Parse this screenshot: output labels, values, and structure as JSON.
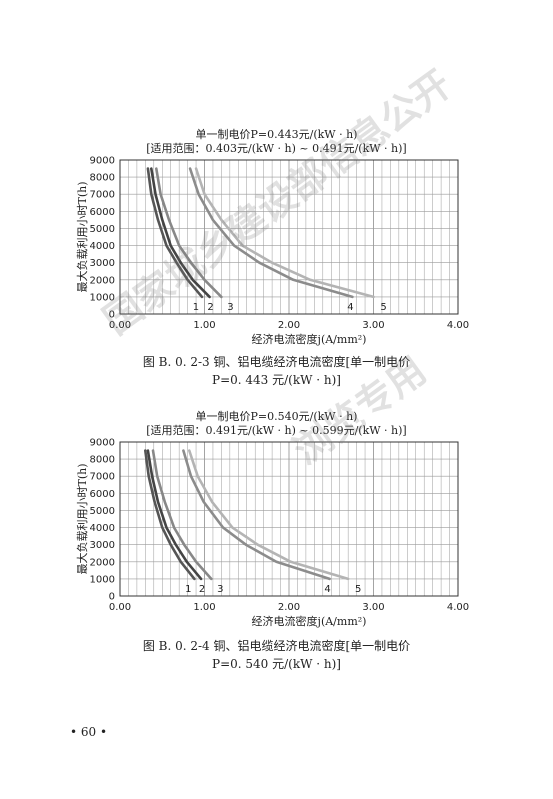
{
  "page_number": "• 60 •",
  "watermark": {
    "line1": "国家城乡建设部信息公开",
    "line2": "浏览专用"
  },
  "figures": [
    {
      "title": "单一制电价P=0.443元/(kW · h)",
      "range": "[适用范围：0.403元/(kW · h) ~ 0.491元/(kW · h)]",
      "caption_line1": "图 B. 0. 2-3   铜、铝电缆经济电流密度[单一制电价",
      "caption_line2": "P=0. 443 元/(kW · h)]"
    },
    {
      "title": "单一制电价P=0.540元/(kW · h)",
      "range": "[适用范围：0.491元/(kW · h) ~ 0.599元/(kW · h)]",
      "caption_line1": "图 B. 0. 2-4   铜、铝电缆经济电流密度[单一制电价",
      "caption_line2": "P=0. 540 元/(kW · h)]"
    }
  ],
  "chart_data": [
    {
      "type": "line",
      "title": "单一制电价P=0.443元/(kW · h)",
      "xlabel": "经济电流密度j(A/mm²)",
      "ylabel": "最大负载利用小时T(h)",
      "xlim": [
        0,
        4
      ],
      "ylim": [
        0,
        9000
      ],
      "x_ticks": [
        "0.00",
        "1.00",
        "2.00",
        "3.00",
        "4.00"
      ],
      "y_ticks": [
        "0",
        "1000",
        "2000",
        "3000",
        "4000",
        "5000",
        "6000",
        "7000",
        "8000",
        "9000"
      ],
      "grid": true,
      "series": [
        {
          "name": "1",
          "color": "#555555",
          "points": [
            [
              0.33,
              8500
            ],
            [
              0.37,
              7000
            ],
            [
              0.45,
              5500
            ],
            [
              0.55,
              4000
            ],
            [
              0.67,
              3000
            ],
            [
              0.8,
              2000
            ],
            [
              0.97,
              1000
            ]
          ]
        },
        {
          "name": "2",
          "color": "#444444",
          "points": [
            [
              0.37,
              8500
            ],
            [
              0.42,
              7000
            ],
            [
              0.5,
              5500
            ],
            [
              0.6,
              4000
            ],
            [
              0.72,
              3000
            ],
            [
              0.86,
              2000
            ],
            [
              1.06,
              1000
            ]
          ]
        },
        {
          "name": "3",
          "color": "#888888",
          "points": [
            [
              0.43,
              8500
            ],
            [
              0.48,
              7000
            ],
            [
              0.58,
              5500
            ],
            [
              0.7,
              4000
            ],
            [
              0.84,
              3000
            ],
            [
              1.0,
              2000
            ],
            [
              1.2,
              1000
            ]
          ]
        },
        {
          "name": "4",
          "color": "#8c8c8c",
          "points": [
            [
              0.83,
              8500
            ],
            [
              0.93,
              7000
            ],
            [
              1.1,
              5500
            ],
            [
              1.35,
              4000
            ],
            [
              1.65,
              3000
            ],
            [
              2.05,
              2000
            ],
            [
              2.75,
              1000
            ]
          ]
        },
        {
          "name": "5",
          "color": "#b4b4b4",
          "points": [
            [
              0.9,
              8500
            ],
            [
              1.0,
              7000
            ],
            [
              1.2,
              5500
            ],
            [
              1.45,
              4000
            ],
            [
              1.8,
              3000
            ],
            [
              2.25,
              2000
            ],
            [
              3.0,
              1000
            ]
          ]
        }
      ]
    },
    {
      "type": "line",
      "title": "单一制电价P=0.540元/(kW · h)",
      "xlabel": "经济电流密度j(A/mm²)",
      "ylabel": "最大负载利用小时T(h)",
      "xlim": [
        0,
        4
      ],
      "ylim": [
        0,
        9000
      ],
      "x_ticks": [
        "0.00",
        "1.00",
        "2.00",
        "3.00",
        "4.00"
      ],
      "y_ticks": [
        "0",
        "1000",
        "2000",
        "3000",
        "4000",
        "5000",
        "6000",
        "7000",
        "8000",
        "9000"
      ],
      "grid": true,
      "series": [
        {
          "name": "1",
          "color": "#555555",
          "points": [
            [
              0.3,
              8500
            ],
            [
              0.34,
              7000
            ],
            [
              0.41,
              5500
            ],
            [
              0.5,
              4000
            ],
            [
              0.6,
              3000
            ],
            [
              0.72,
              2000
            ],
            [
              0.88,
              1000
            ]
          ]
        },
        {
          "name": "2",
          "color": "#444444",
          "points": [
            [
              0.33,
              8500
            ],
            [
              0.38,
              7000
            ],
            [
              0.45,
              5500
            ],
            [
              0.55,
              4000
            ],
            [
              0.66,
              3000
            ],
            [
              0.79,
              2000
            ],
            [
              0.96,
              1000
            ]
          ]
        },
        {
          "name": "3",
          "color": "#888888",
          "points": [
            [
              0.39,
              8500
            ],
            [
              0.44,
              7000
            ],
            [
              0.53,
              5500
            ],
            [
              0.64,
              4000
            ],
            [
              0.76,
              3000
            ],
            [
              0.9,
              2000
            ],
            [
              1.08,
              1000
            ]
          ]
        },
        {
          "name": "4",
          "color": "#8c8c8c",
          "points": [
            [
              0.75,
              8500
            ],
            [
              0.84,
              7000
            ],
            [
              0.99,
              5500
            ],
            [
              1.22,
              4000
            ],
            [
              1.49,
              3000
            ],
            [
              1.85,
              2000
            ],
            [
              2.48,
              1000
            ]
          ]
        },
        {
          "name": "5",
          "color": "#b4b4b4",
          "points": [
            [
              0.82,
              8500
            ],
            [
              0.92,
              7000
            ],
            [
              1.09,
              5500
            ],
            [
              1.33,
              4000
            ],
            [
              1.63,
              3000
            ],
            [
              2.02,
              2000
            ],
            [
              2.7,
              1000
            ]
          ]
        }
      ]
    }
  ]
}
